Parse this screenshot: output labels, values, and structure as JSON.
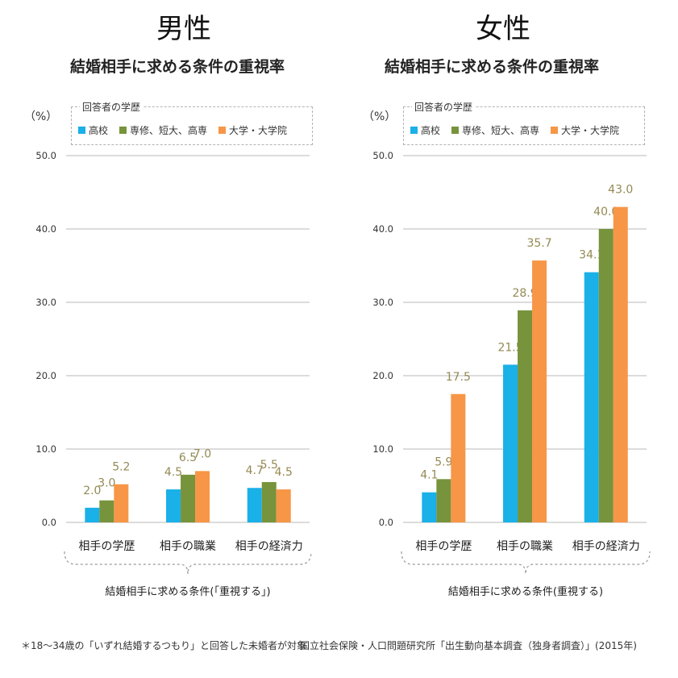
{
  "colors": {
    "high_school": "#1ab0e8",
    "vocational": "#77933c",
    "university": "#f79646",
    "value_label": "#948a54",
    "grid": "#d0d0d0"
  },
  "legend": {
    "title": "回答者の学歴",
    "items": [
      "高校",
      "専修、短大、高専",
      "大学・大学院"
    ]
  },
  "unit_label": "（%）",
  "footnote": "＊18〜34歳の「いずれ結婚するつもり」と回答した未婚者が対象",
  "source": "国立社会保険・人口問題研究所「出生動向基本調査（独身者調査）」(2015年)",
  "chart_data": [
    {
      "type": "bar",
      "gender_title": "男性",
      "title": "結婚相手に求める条件の重視率",
      "xlabel": "結婚相手に求める条件(「重視する」)",
      "ylabel": "（%）",
      "ylim": [
        0,
        50
      ],
      "yticks": [
        "0.0",
        "10.0",
        "20.0",
        "30.0",
        "40.0",
        "50.0"
      ],
      "grid": true,
      "legend_position": "top",
      "categories": [
        "相手の学歴",
        "相手の職業",
        "相手の経済力"
      ],
      "series": [
        {
          "name": "高校",
          "values": [
            2.0,
            4.5,
            4.7
          ]
        },
        {
          "name": "専修、短大、高専",
          "values": [
            3.0,
            6.5,
            5.5
          ]
        },
        {
          "name": "大学・大学院",
          "values": [
            5.2,
            7.0,
            4.5
          ]
        }
      ],
      "value_labels": [
        [
          "2.0",
          "4.5",
          "4.7"
        ],
        [
          "3.0",
          "6.5",
          "5.5"
        ],
        [
          "5.2",
          "7.0",
          "4.5"
        ]
      ]
    },
    {
      "type": "bar",
      "gender_title": "女性",
      "title": "結婚相手に求める条件の重視率",
      "xlabel": "結婚相手に求める条件(重視する)",
      "ylabel": "（%）",
      "ylim": [
        0,
        50
      ],
      "yticks": [
        "0.0",
        "10.0",
        "20.0",
        "30.0",
        "40.0",
        "50.0"
      ],
      "grid": true,
      "legend_position": "top",
      "categories": [
        "相手の学歴",
        "相手の職業",
        "相手の経済力"
      ],
      "series": [
        {
          "name": "高校",
          "values": [
            4.1,
            21.5,
            34.1
          ]
        },
        {
          "name": "専修、短大、高専",
          "values": [
            5.9,
            28.9,
            40.0
          ]
        },
        {
          "name": "大学・大学院",
          "values": [
            17.5,
            35.7,
            43.0
          ]
        }
      ],
      "value_labels": [
        [
          "4.1",
          "21.5",
          "34.1"
        ],
        [
          "5.9",
          "28.9",
          "40.0"
        ],
        [
          "17.5",
          "35.7",
          "43.0"
        ]
      ]
    }
  ]
}
